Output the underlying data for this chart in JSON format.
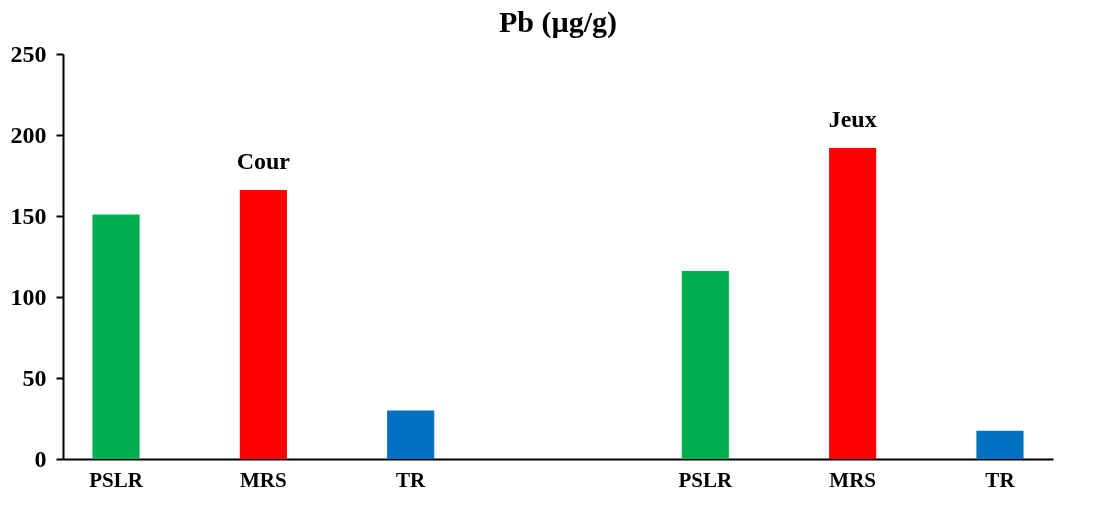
{
  "chart_data": {
    "type": "bar",
    "title": "Pb (µg/g)",
    "categories": [
      "PSLR",
      "MRS",
      "TR",
      null,
      "PSLR",
      "MRS",
      "TR"
    ],
    "values": [
      151,
      166,
      30,
      null,
      116,
      192,
      17.5
    ],
    "colors": [
      "#00b050",
      "#ff0000",
      "#0070c0",
      null,
      "#00b050",
      "#ff0000",
      "#0070c0"
    ],
    "ylim": [
      0,
      250
    ],
    "yticks": [
      0,
      50,
      100,
      150,
      200,
      250
    ],
    "grid": false,
    "annotations": [
      "Cour",
      "Jeux"
    ]
  }
}
